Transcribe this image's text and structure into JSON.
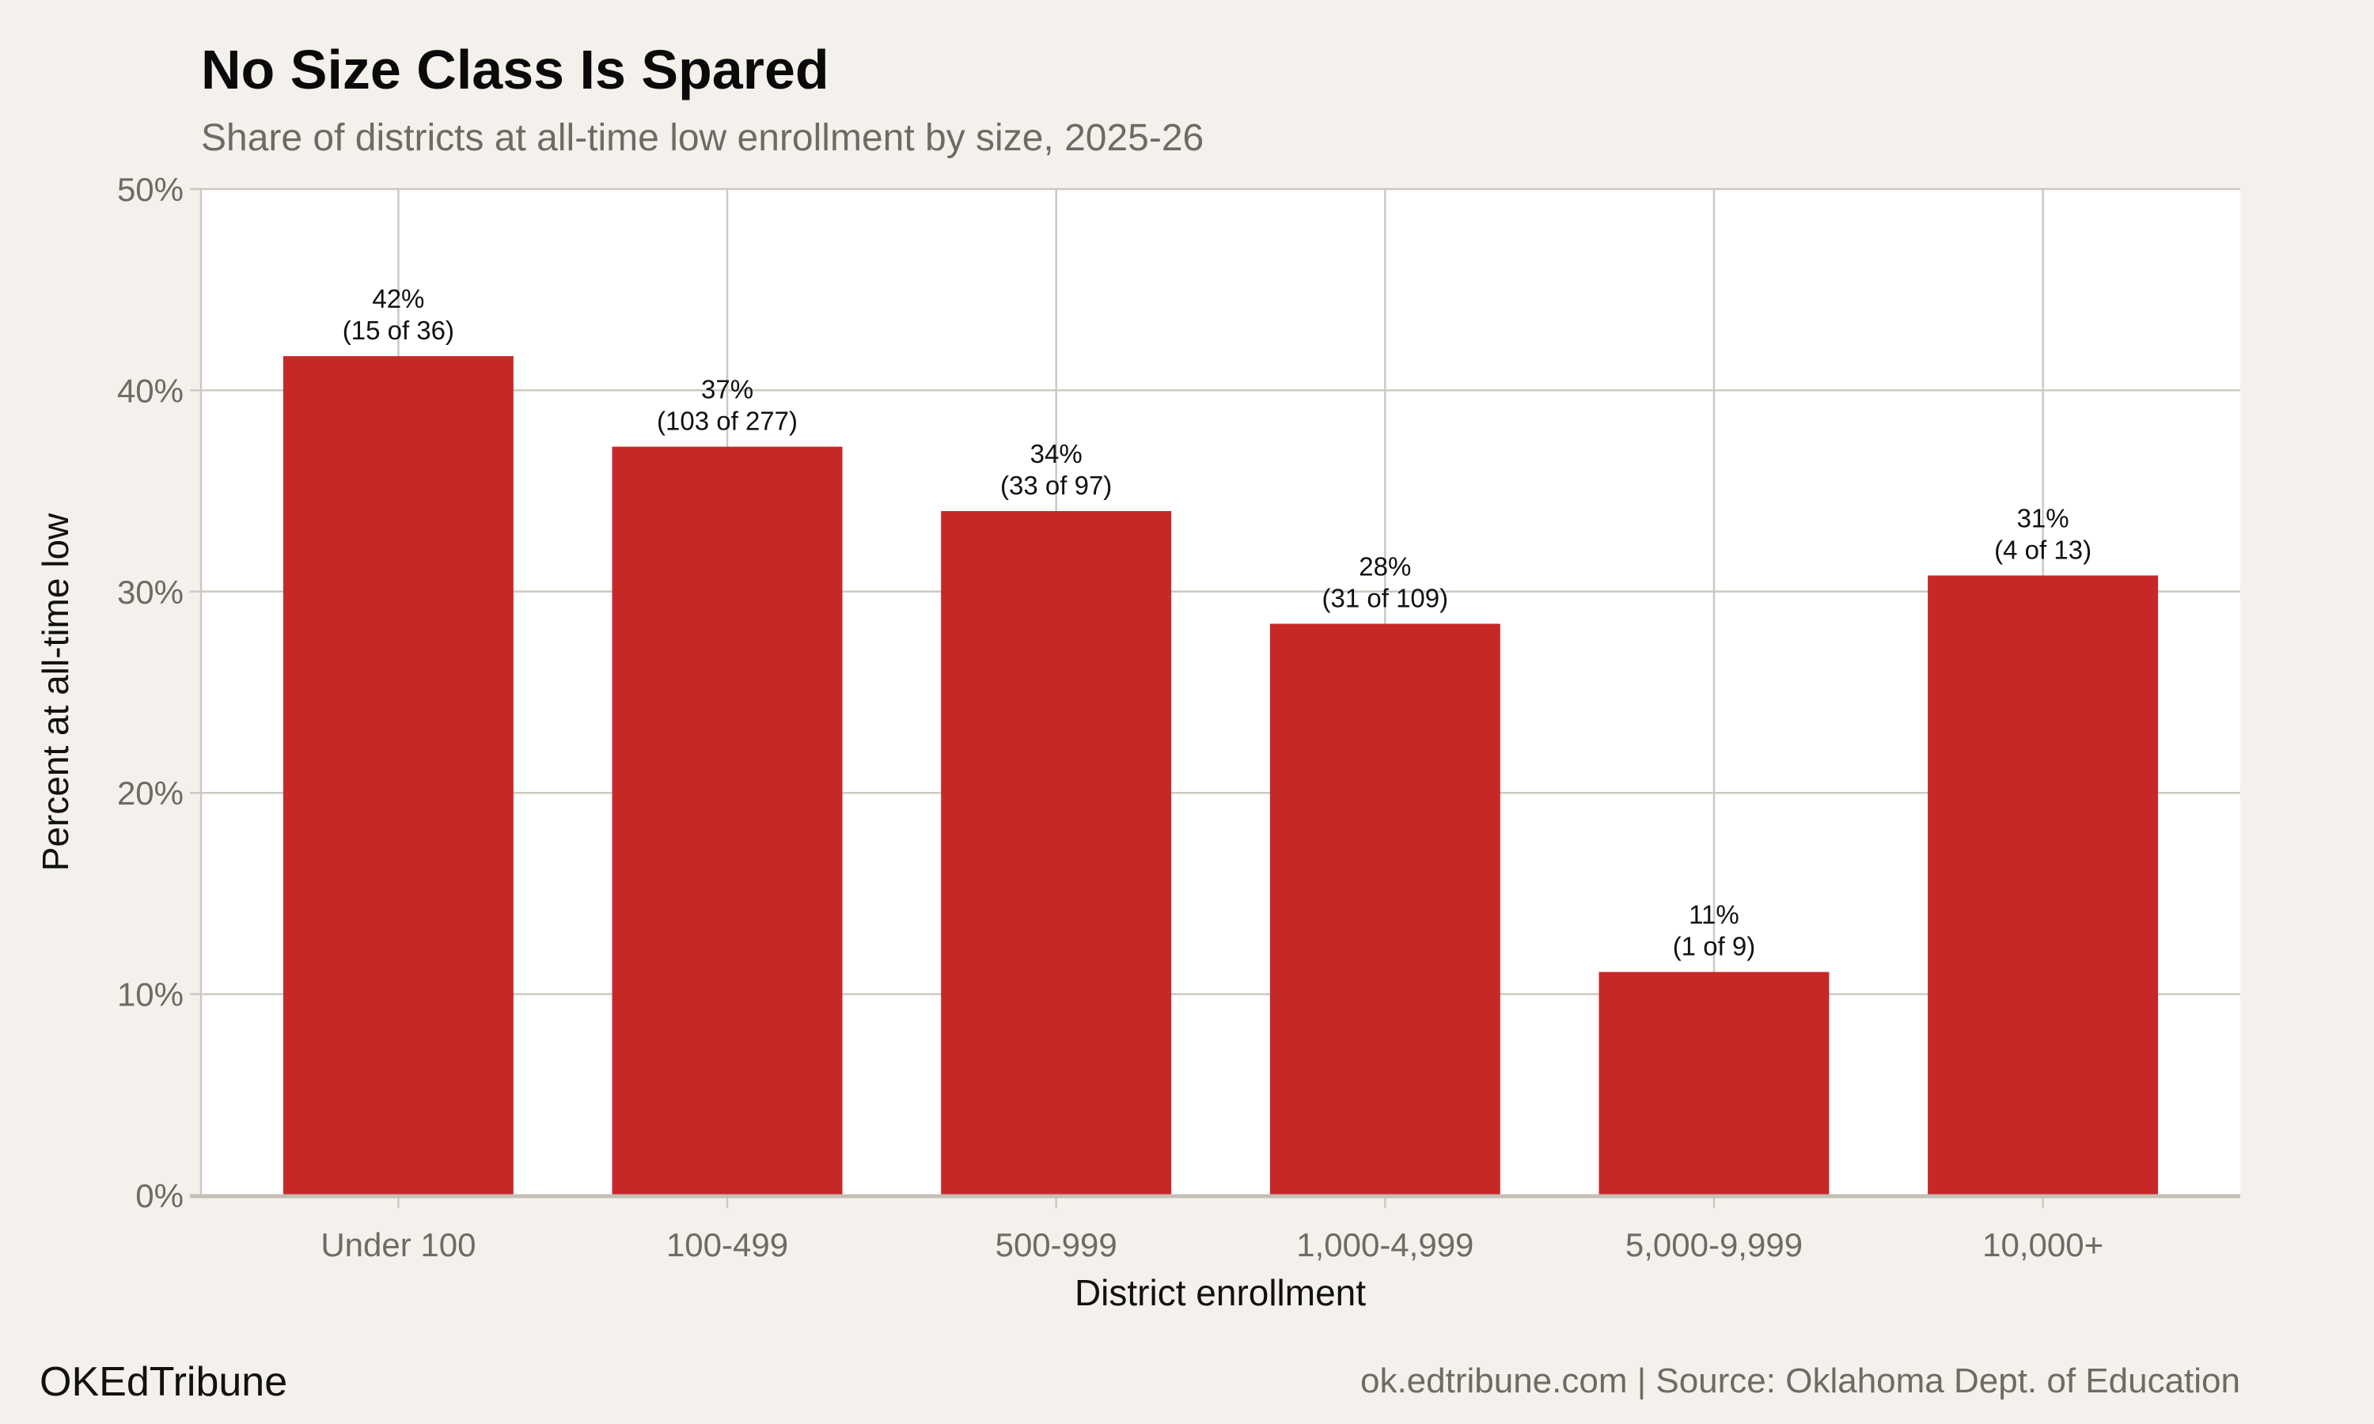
{
  "chart_data": {
    "type": "bar",
    "title": "No Size Class Is Spared",
    "subtitle": "Share of districts at all-time low enrollment by size, 2025-26",
    "xlabel": "District enrollment",
    "ylabel": "Percent at all-time low",
    "categories": [
      "Under 100",
      "100-499",
      "500-999",
      "1,000-4,999",
      "5,000-9,999",
      "10,000+"
    ],
    "values": [
      41.7,
      37.2,
      34.0,
      28.4,
      11.1,
      30.8
    ],
    "data_labels": [
      [
        "42%",
        "(15 of 36)"
      ],
      [
        "37%",
        "(103 of 277)"
      ],
      [
        "34%",
        "(33 of 97)"
      ],
      [
        "28%",
        "(31 of 109)"
      ],
      [
        "11%",
        "(1 of 9)"
      ],
      [
        "31%",
        "(4 of 13)"
      ]
    ],
    "ylim": [
      0,
      50
    ],
    "yticks": [
      0,
      10,
      20,
      30,
      40,
      50
    ],
    "ytick_labels": [
      "0%",
      "10%",
      "20%",
      "30%",
      "40%",
      "50%"
    ],
    "grid": true,
    "colors": {
      "bar": "#c62828",
      "background": "#f4f1ec",
      "panel": "#ffffff",
      "grid": "#cdc9c1"
    }
  },
  "footer": {
    "brand": "OKEdTribune",
    "source": "ok.edtribune.com | Source: Oklahoma Dept. of Education"
  }
}
